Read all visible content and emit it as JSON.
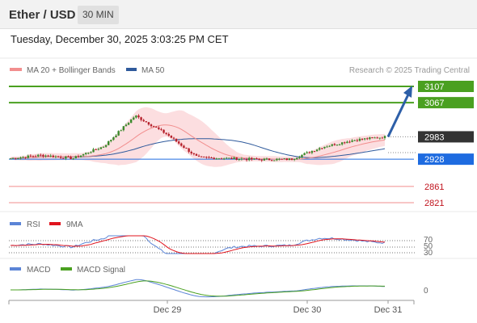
{
  "header": {
    "title": "Ether / USD",
    "timeframe": "30 MIN"
  },
  "timestamp": "Tuesday, December 30, 2025 3:03:25 PM CET",
  "credit": "Research © 2025 Trading Central",
  "legend": {
    "ma20": {
      "label": "MA 20 + Bollinger Bands",
      "color": "#f28e8e"
    },
    "ma50": {
      "label": "MA 50",
      "color": "#2f5a9c"
    }
  },
  "rsi_legend": {
    "rsi": {
      "label": "RSI",
      "color": "#5b84d6"
    },
    "ma9": {
      "label": "9MA",
      "color": "#e0141e"
    }
  },
  "macd_legend": {
    "macd": {
      "label": "MACD",
      "color": "#5b84d6"
    },
    "signal": {
      "label": "MACD Signal",
      "color": "#4aa020"
    }
  },
  "colors": {
    "up_candle": "#3a8a2c",
    "down_candle": "#b51f2a",
    "resistance": "#4aa020",
    "support": "#f28e8e",
    "pivot": "#1e6be0",
    "arrow": "#2d5fa8"
  },
  "levels": [
    {
      "name": "resistance-2",
      "label": "3107",
      "value": 3107,
      "type": "resistance"
    },
    {
      "name": "resistance-1",
      "label": "3067",
      "value": 3067,
      "type": "resistance"
    },
    {
      "name": "last-price",
      "label": "2983",
      "value": 2983,
      "type": "last"
    },
    {
      "name": "pivot",
      "label": "2928",
      "value": 2928,
      "type": "pivot"
    },
    {
      "name": "support-1",
      "label": "2861",
      "value": 2861,
      "type": "support"
    },
    {
      "name": "support-2",
      "label": "2821",
      "value": 2821,
      "type": "support"
    }
  ],
  "price_scale": {
    "min": 2821,
    "max": 3107
  },
  "rsi_levels": [
    "70",
    "50",
    "30"
  ],
  "macd_level": "0",
  "x_labels": [
    "Dec 29",
    "Dec 30",
    "Dec 31"
  ],
  "chart_data": {
    "type": "candlestick",
    "title": "Ether / USD",
    "timeframe": "30 MIN",
    "x_ticks": [
      "Dec 29",
      "Dec 30",
      "Dec 31"
    ],
    "resistance_levels": [
      3107,
      3067
    ],
    "last_price": 2983,
    "pivot": 2928,
    "support_levels": [
      2861,
      2821
    ],
    "price_waypoints": [
      {
        "position": "start",
        "close": 2930
      },
      {
        "position": "mid-Dec 28",
        "close": 2938
      },
      {
        "position": "before Dec 29",
        "close": 2930
      },
      {
        "position": "Dec 29 rally",
        "close": 2960
      },
      {
        "position": "Dec 29 high",
        "close": 3035
      },
      {
        "position": "Dec 29 pullback",
        "close": 2990
      },
      {
        "position": "Dec 29 drop",
        "close": 2932
      },
      {
        "position": "Dec 29 late",
        "close": 2930
      },
      {
        "position": "Dec 30 early",
        "close": 2927
      },
      {
        "position": "Dec 30 morning",
        "close": 2928
      },
      {
        "position": "Dec 30 midday",
        "close": 2958
      },
      {
        "position": "Dec 30 afternoon",
        "close": 2975
      },
      {
        "position": "latest",
        "close": 2983
      }
    ],
    "forecast_arrow": {
      "from": 2983,
      "to": 3107
    },
    "rsi_levels": [
      70,
      50,
      30
    ],
    "macd_level": 0
  }
}
